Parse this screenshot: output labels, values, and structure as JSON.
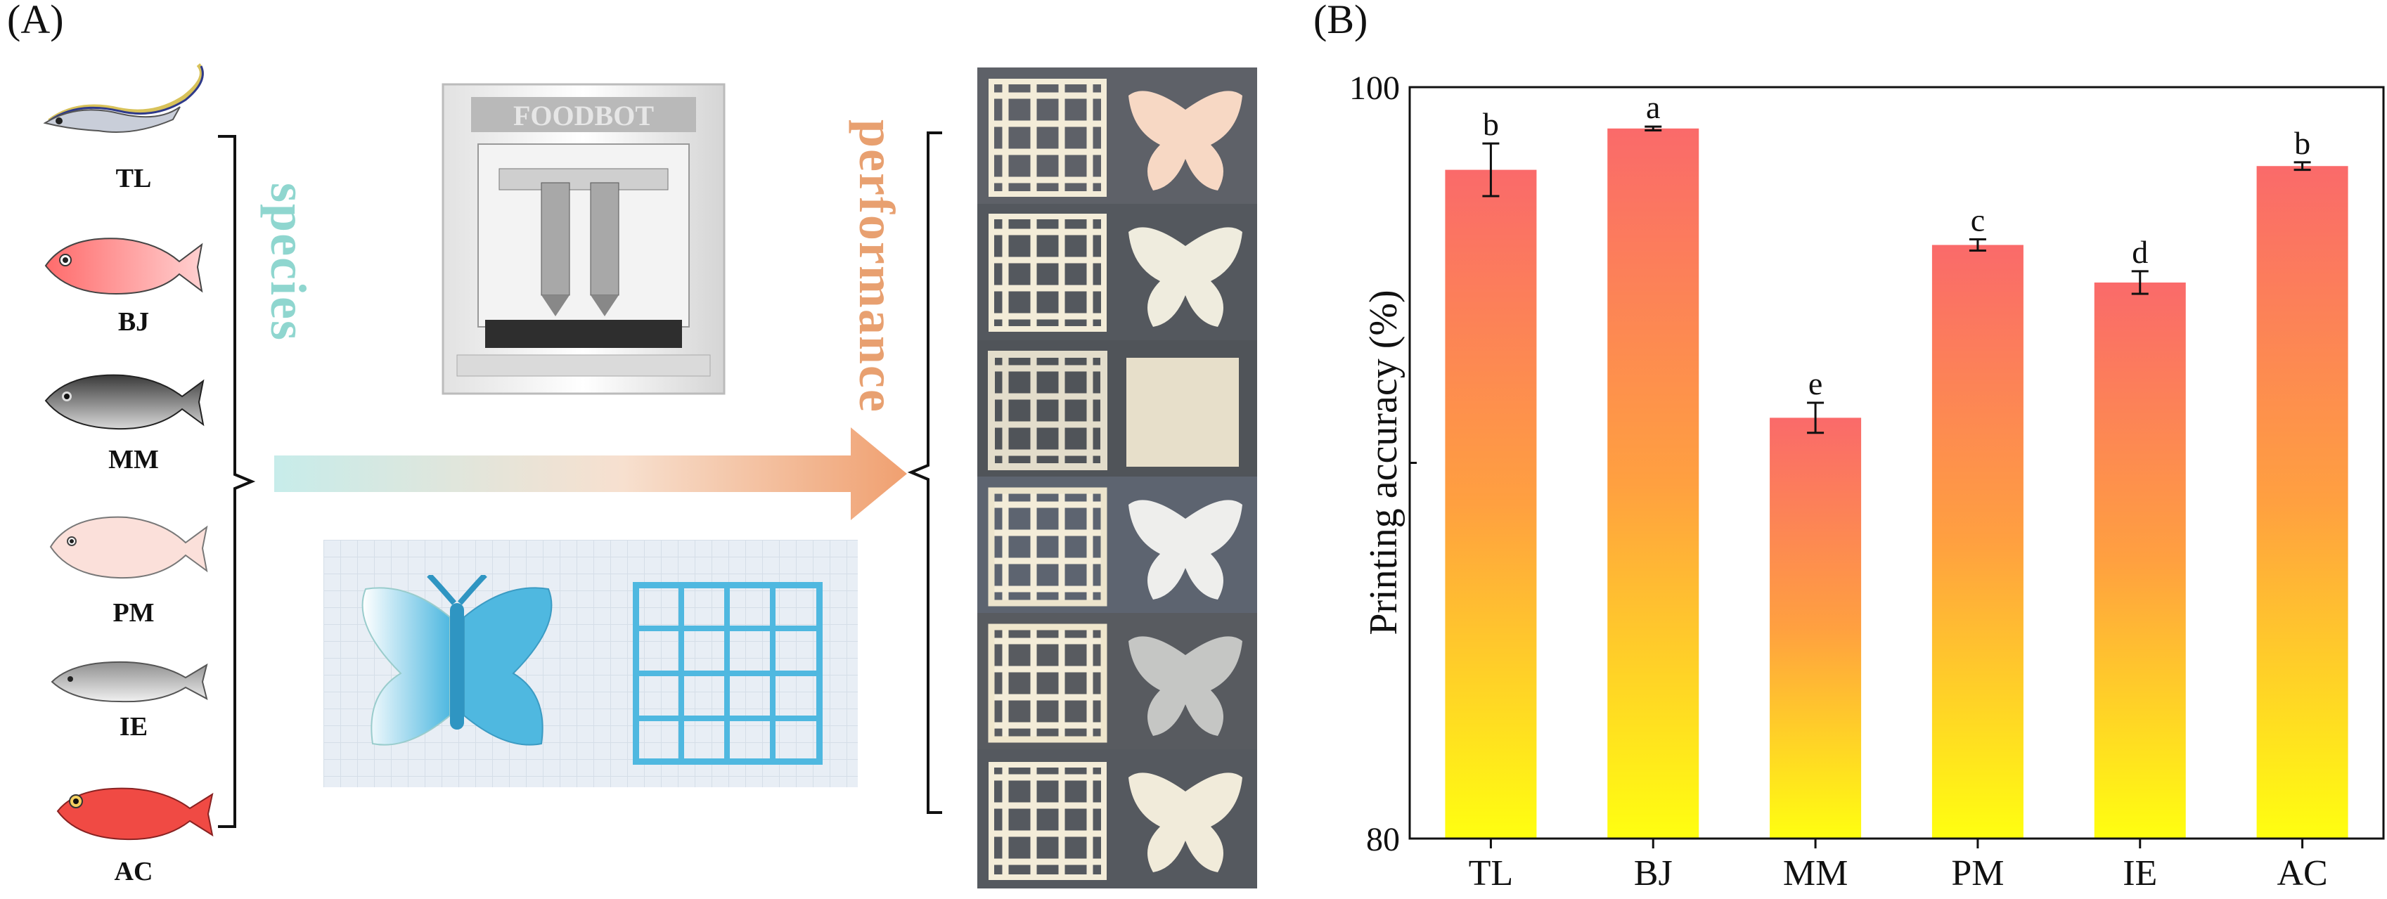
{
  "panels": {
    "left": "(A)",
    "right": "(B)"
  },
  "species_word": "species",
  "performance_word": "performance",
  "printer_brand": "FOODBOT",
  "fish": [
    {
      "code": "TL",
      "icon": "ribbonfish-icon"
    },
    {
      "code": "BJ",
      "icon": "red-snapper-icon"
    },
    {
      "code": "MM",
      "icon": "black-seabass-icon"
    },
    {
      "code": "PM",
      "icon": "pink-porgy-icon"
    },
    {
      "code": "IE",
      "icon": "silver-fish-icon"
    },
    {
      "code": "AC",
      "icon": "red-rockfish-icon"
    }
  ],
  "colors": {
    "species_text": "#8fd6cf",
    "performance_text": "#e8a070",
    "arrow_start": "#c7ecea",
    "arrow_end": "#f0a070",
    "bar_top": "#fa6a6a",
    "bar_bottom": "#ffff10",
    "model_blue": "#4fb8e0"
  },
  "chart_data": {
    "type": "bar",
    "categories": [
      "TL",
      "BJ",
      "MM",
      "PM",
      "IE",
      "AC"
    ],
    "values": [
      97.8,
      98.9,
      91.2,
      95.8,
      94.8,
      97.9
    ],
    "errors": [
      0.7,
      0.05,
      0.4,
      0.15,
      0.3,
      0.1
    ],
    "letters": [
      "b",
      "a",
      "e",
      "c",
      "d",
      "b"
    ],
    "ylabel": "Printing accuracy (%)",
    "xlabel": "",
    "ylim": [
      80,
      100
    ],
    "yticks": [
      80,
      100
    ],
    "grid": false
  }
}
